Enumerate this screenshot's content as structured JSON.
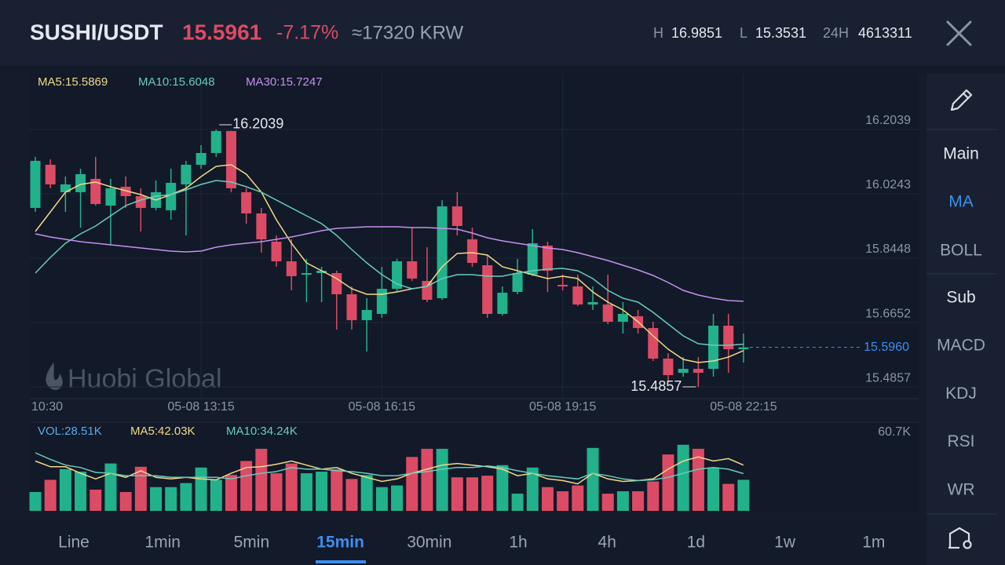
{
  "header": {
    "pair": "SUSHI/USDT",
    "price": "15.5961",
    "change": "-7.17%",
    "fiat": "≈17320 KRW",
    "high_label": "H",
    "high": "16.9851",
    "low_label": "L",
    "low": "15.3531",
    "volume_label": "24H",
    "volume": "4613311"
  },
  "watermark": "Huobi Global",
  "sidebar": {
    "main": "Main",
    "main_items": [
      {
        "label": "MA",
        "active": true
      },
      {
        "label": "BOLL"
      }
    ],
    "sub": "Sub",
    "sub_items": [
      {
        "label": "MACD"
      },
      {
        "label": "KDJ"
      },
      {
        "label": "RSI"
      },
      {
        "label": "WR"
      }
    ]
  },
  "timeframes": [
    {
      "label": "Line"
    },
    {
      "label": "1min"
    },
    {
      "label": "5min"
    },
    {
      "label": "15min",
      "active": true
    },
    {
      "label": "30min"
    },
    {
      "label": "1h"
    },
    {
      "label": "4h"
    },
    {
      "label": "1d"
    },
    {
      "label": "1w"
    },
    {
      "label": "1m"
    }
  ],
  "chart_data": [
    {
      "type": "candlestick",
      "categories": [
        "10:30",
        null,
        null,
        null,
        null,
        null,
        null,
        null,
        null,
        null,
        null,
        "05-08 13:15",
        null,
        null,
        null,
        null,
        null,
        null,
        null,
        null,
        null,
        null,
        null,
        "05-08 16:15",
        null,
        null,
        null,
        null,
        null,
        null,
        null,
        null,
        null,
        null,
        null,
        "05-08 19:15",
        null,
        null,
        null,
        null,
        null,
        null,
        null,
        null,
        null,
        null,
        null,
        "05-08 22:15"
      ],
      "open": [
        15.985,
        16.1054,
        16.0288,
        16.0288,
        16.066,
        15.9915,
        16.0441,
        16.0178,
        15.985,
        15.9784,
        16.0506,
        16.1054,
        16.1382,
        16.1995,
        16.0288,
        15.9696,
        15.8908,
        15.8361,
        15.7988,
        15.8032,
        15.8032,
        15.7441,
        15.6718,
        15.6894,
        15.7594,
        15.8361,
        15.7813,
        15.7332,
        15.9893,
        15.8974,
        15.8251,
        15.6894,
        15.7507,
        15.7988,
        15.8799,
        15.7704,
        15.766,
        15.7156,
        15.7156,
        15.6675,
        15.6828,
        15.6499,
        15.5646,
        15.5251,
        15.5361,
        15.5361,
        15.6565,
        15.5908
      ],
      "high": [
        16.1273,
        16.1207,
        16.0725,
        16.0944,
        16.1273,
        16.066,
        16.0725,
        16.0397,
        16.0616,
        16.0944,
        16.1163,
        16.1601,
        16.2039,
        16.2,
        16.0397,
        15.985,
        15.9083,
        15.8974,
        15.8426,
        15.8207,
        15.8098,
        15.766,
        15.7332,
        15.8207,
        15.8426,
        15.9302,
        15.8755,
        16.0069,
        16.0288,
        15.9302,
        15.8536,
        15.766,
        15.8426,
        15.9258,
        15.8908,
        15.7988,
        15.7988,
        15.766,
        15.7988,
        15.7222,
        15.7003,
        15.6675,
        15.5799,
        15.5689,
        15.5689,
        15.6894,
        15.6894,
        15.6346
      ],
      "low": [
        15.974,
        16.0397,
        15.974,
        15.9302,
        15.9915,
        15.882,
        15.985,
        15.9193,
        15.9784,
        15.9521,
        15.9083,
        16.0944,
        16.1273,
        16.0288,
        15.9412,
        15.8602,
        15.8207,
        15.755,
        15.7222,
        15.7222,
        15.6456,
        15.6456,
        15.5843,
        15.6784,
        15.7507,
        15.7813,
        15.7222,
        15.7288,
        15.9083,
        15.8207,
        15.6784,
        15.685,
        15.7441,
        15.7945,
        15.7507,
        15.755,
        15.7113,
        15.7003,
        15.6609,
        15.6346,
        15.6346,
        15.558,
        15.5032,
        15.5142,
        15.4857,
        15.5142,
        15.5251,
        15.5536
      ],
      "close": [
        16.1163,
        16.0506,
        16.0506,
        16.0791,
        15.9959,
        16.0397,
        16.0178,
        15.985,
        16.0288,
        16.055,
        16.1054,
        16.1382,
        16.1995,
        16.0397,
        15.9696,
        15.8974,
        15.8361,
        15.7945,
        15.8032,
        15.8098,
        15.7441,
        15.6718,
        15.7003,
        15.7594,
        15.8361,
        15.7879,
        15.7288,
        15.9893,
        15.9346,
        15.8317,
        15.6894,
        15.7485,
        15.8032,
        15.8864,
        15.8098,
        15.766,
        15.7156,
        15.7222,
        15.6675,
        15.6894,
        15.6499,
        15.5646,
        15.5186,
        15.5361,
        15.5251,
        15.6565,
        15.5908,
        15.596
      ],
      "up_color": "#22b28b",
      "down_color": "#dc4b65",
      "lines": [
        {
          "name": "MA5:15.5869",
          "color": "#f1d98c",
          "values": [
            15.9193,
            15.974,
            16.0288,
            16.0506,
            16.0572,
            16.0441,
            16.0331,
            16.0222,
            16.0069,
            16.0222,
            16.0397,
            16.0725,
            16.101,
            16.1054,
            16.0791,
            16.0288,
            15.9521,
            15.8864,
            15.8317,
            15.8098,
            15.7879,
            15.7594,
            15.7441,
            15.7441,
            15.7507,
            15.7594,
            15.766,
            15.8207,
            15.858,
            15.8602,
            15.8536,
            15.8207,
            15.8098,
            15.7988,
            15.7879,
            15.7945,
            15.7879,
            15.7507,
            15.7222,
            15.7003,
            15.6675,
            15.6281,
            15.5908,
            15.5624,
            15.5536,
            15.558,
            15.5689,
            15.5869
          ]
        },
        {
          "name": "MA10:15.6048",
          "color": "#66cdb9",
          "values": [
            15.8032,
            15.847,
            15.8864,
            15.9127,
            15.9346,
            15.9631,
            15.9915,
            16.0069,
            16.0178,
            16.0222,
            16.0353,
            16.0506,
            16.0616,
            16.0572,
            16.0441,
            16.0288,
            16.0069,
            15.985,
            15.9631,
            15.9412,
            15.9083,
            15.8689,
            15.8317,
            15.7988,
            15.7726,
            15.7594,
            15.766,
            15.7879,
            15.7988,
            15.7988,
            15.7945,
            15.7945,
            15.8032,
            15.8098,
            15.8142,
            15.8164,
            15.8098,
            15.7879,
            15.755,
            15.7332,
            15.7222,
            15.6937,
            15.6609,
            15.6281,
            15.6062,
            15.6018,
            15.6018,
            15.6048
          ]
        },
        {
          "name": "MA30:15.7247",
          "color": "#c78ff0",
          "values": [
            15.9127,
            15.9039,
            15.8974,
            15.8908,
            15.8864,
            15.882,
            15.8777,
            15.8733,
            15.8689,
            15.8645,
            15.8623,
            15.8645,
            15.8755,
            15.882,
            15.8864,
            15.8908,
            15.8974,
            15.9039,
            15.9127,
            15.9215,
            15.928,
            15.9302,
            15.9324,
            15.9324,
            15.9324,
            15.9302,
            15.9302,
            15.928,
            15.9258,
            15.9149,
            15.9018,
            15.893,
            15.8864,
            15.8799,
            15.8733,
            15.8689,
            15.8602,
            15.8492,
            15.8383,
            15.8251,
            15.812,
            15.7967,
            15.7769,
            15.755,
            15.7419,
            15.7332,
            15.7266,
            15.7247
          ]
        }
      ],
      "ylim": [
        15.453,
        16.357
      ],
      "yticks": [
        15.4857,
        15.6652,
        15.8448,
        16.0243,
        16.2039
      ],
      "grid": true,
      "last_price": {
        "value": 15.596,
        "label": "15.5960"
      },
      "annotations": [
        16.2039,
        15.4857
      ]
    },
    {
      "type": "bar",
      "series": [
        {
          "name": "VOL:28.51K",
          "color": "#58aaec",
          "values": [
            17.3,
            28.5,
            38.3,
            36.0,
            19.5,
            43.5,
            17.3,
            40.5,
            21.8,
            21.8,
            25.5,
            39.8,
            28.5,
            33.0,
            45.8,
            57.0,
            34.5,
            43.5,
            34.5,
            36.0,
            38.3,
            29.3,
            33.0,
            21.8,
            23.3,
            49.5,
            57.0,
            57.0,
            30.8,
            30.8,
            32.3,
            42.0,
            15.8,
            39.8,
            21.8,
            18.0,
            23.3,
            57.8,
            15.8,
            18.0,
            18.0,
            27.0,
            51.8,
            60.7,
            57.0,
            39.8,
            24.8,
            28.51
          ]
        },
        {
          "name": "MA5:42.03K",
          "color": "#f1d98c",
          "type": "line",
          "values": [
            45.8,
            40.5,
            40.5,
            34.5,
            29.3,
            34.5,
            30.8,
            36.8,
            30.8,
            29.3,
            30.8,
            29.3,
            28.5,
            34.5,
            39.8,
            40.5,
            42.8,
            45.8,
            42.0,
            38.3,
            39.8,
            34.5,
            30.8,
            27.0,
            29.3,
            34.5,
            38.3,
            42.0,
            43.5,
            42.0,
            40.5,
            38.3,
            32.3,
            34.5,
            29.3,
            27.8,
            24.8,
            34.5,
            29.3,
            27.0,
            27.8,
            29.3,
            38.3,
            45.8,
            49.5,
            45.8,
            48.0,
            42.03
          ]
        },
        {
          "name": "MA10:34.24K",
          "color": "#66cdb9",
          "type": "line",
          "values": [
            53.3,
            47.3,
            42.0,
            39.8,
            35.3,
            34.5,
            32.3,
            32.3,
            32.3,
            30.8,
            30.8,
            30.8,
            30.8,
            29.3,
            32.3,
            34.5,
            36.0,
            39.8,
            38.3,
            38.3,
            36.8,
            36.0,
            34.5,
            32.3,
            32.3,
            34.5,
            36.0,
            38.3,
            39.8,
            39.8,
            41.3,
            39.8,
            36.8,
            34.5,
            32.3,
            30.8,
            29.3,
            34.5,
            32.3,
            29.3,
            27.8,
            28.5,
            30.8,
            34.5,
            38.3,
            39.8,
            38.3,
            34.24
          ]
        }
      ],
      "ylim": [
        0,
        80
      ],
      "yticks": [
        {
          "value": 60.7,
          "label": "60.7K"
        }
      ]
    }
  ]
}
